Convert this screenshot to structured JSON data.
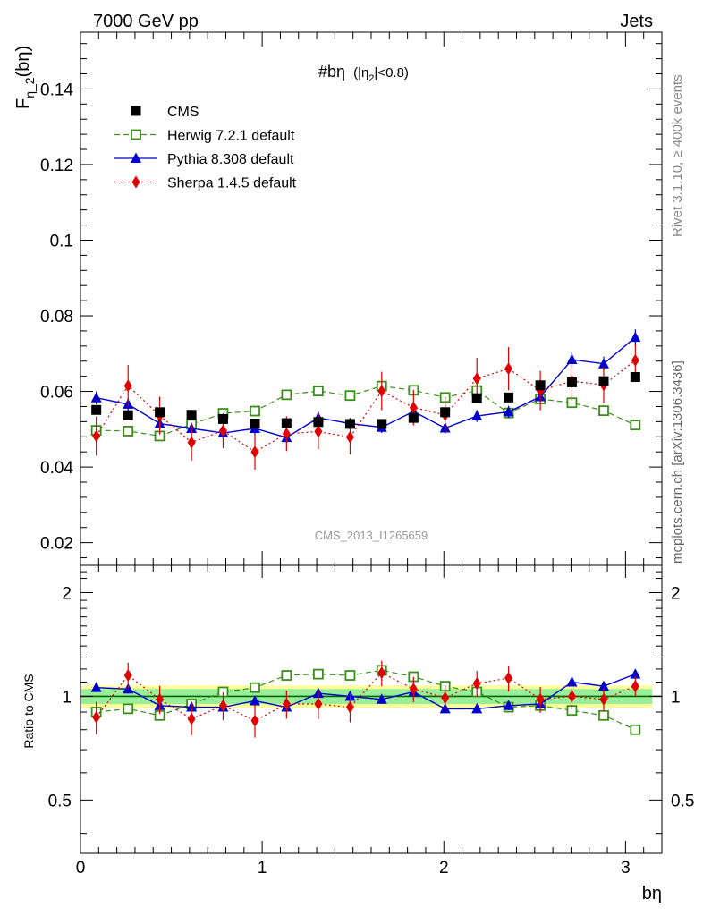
{
  "header": {
    "left": "7000 GeV pp",
    "right": "Jets"
  },
  "side_labels": {
    "rivet": "Rivet 3.1.10, ≥ 400k events",
    "mcplots": "mcplots.cern.ch [arXiv:1306.3436]"
  },
  "plot_title": {
    "main": "#bη",
    "cut": "(|η",
    "cut_sub": "2",
    "cut_end": "|<0.8)"
  },
  "analysis_id": "CMS_2013_I1265659",
  "colors": {
    "cms": "#000000",
    "herwig": "#3a8f1a",
    "pythia": "#0000cc",
    "sherpa": "#e00000",
    "band_yellow": "#ffff99",
    "band_green": "#99ee99",
    "ratio_line": "#006600"
  },
  "chart_data": [
    {
      "type": "scatter",
      "panel": "main",
      "ylabel": "F",
      "ylabel_sub": "η_2",
      "ylabel_arg": "(bη)",
      "xlim": [
        0,
        3.2
      ],
      "ylim": [
        0.014,
        0.155
      ],
      "yticks": [
        0.02,
        0.04,
        0.06,
        0.08,
        0.1,
        0.12,
        0.14
      ],
      "ytick_labels": [
        "0.02",
        "0.04",
        "0.06",
        "0.08",
        "0.1",
        "0.12",
        "0.14"
      ],
      "x": [
        0.087,
        0.262,
        0.436,
        0.611,
        0.785,
        0.96,
        1.134,
        1.309,
        1.484,
        1.658,
        1.833,
        2.007,
        2.182,
        2.356,
        2.531,
        2.705,
        2.88,
        3.054
      ],
      "legend_position": "top-left",
      "series": [
        {
          "name": "CMS",
          "key": "cms",
          "marker": "square",
          "values": [
            0.0551,
            0.0537,
            0.0545,
            0.0538,
            0.0527,
            0.0515,
            0.0516,
            0.0519,
            0.0514,
            0.0514,
            0.053,
            0.0545,
            0.0582,
            0.0584,
            0.0616,
            0.0624,
            0.0627,
            0.0638
          ]
        },
        {
          "name": "Herwig 7.2.1 default",
          "key": "herwig",
          "marker": "open-square",
          "line": "dashed",
          "values": [
            0.0497,
            0.0495,
            0.0482,
            0.0513,
            0.0542,
            0.0548,
            0.0591,
            0.0601,
            0.0589,
            0.0614,
            0.0603,
            0.0584,
            0.0602,
            0.0543,
            0.058,
            0.057,
            0.0549,
            0.0511
          ],
          "errors": [
            0.0012,
            0.0012,
            0.0012,
            0.0012,
            0.0012,
            0.0013,
            0.0013,
            0.0013,
            0.0013,
            0.0014,
            0.0013,
            0.0013,
            0.0013,
            0.0012,
            0.0013,
            0.0013,
            0.0012,
            0.0012
          ]
        },
        {
          "name": "Pythia 8.308 default",
          "key": "pythia",
          "marker": "triangle",
          "line": "solid",
          "values": [
            0.0583,
            0.0566,
            0.0515,
            0.0502,
            0.049,
            0.0502,
            0.0478,
            0.053,
            0.0515,
            0.0505,
            0.0547,
            0.0503,
            0.0535,
            0.0546,
            0.0586,
            0.0684,
            0.0673,
            0.0743
          ],
          "errors": [
            0.0017,
            0.0017,
            0.0016,
            0.0015,
            0.0015,
            0.0016,
            0.0015,
            0.0016,
            0.0015,
            0.0015,
            0.0016,
            0.0015,
            0.0016,
            0.0016,
            0.0017,
            0.0019,
            0.0019,
            0.0021
          ]
        },
        {
          "name": "Sherpa 1.4.5 default",
          "key": "sherpa",
          "marker": "diamond",
          "line": "dotted",
          "values": [
            0.0482,
            0.0615,
            0.0536,
            0.0465,
            0.0496,
            0.044,
            0.0488,
            0.0494,
            0.0479,
            0.0601,
            0.0557,
            0.0538,
            0.0634,
            0.066,
            0.0602,
            0.0627,
            0.0617,
            0.0682
          ],
          "errors": [
            0.0052,
            0.0055,
            0.005,
            0.0048,
            0.0046,
            0.0047,
            0.0046,
            0.0047,
            0.0046,
            0.0051,
            0.0047,
            0.0048,
            0.0055,
            0.0057,
            0.0052,
            0.0052,
            0.0048,
            0.0045
          ]
        }
      ]
    },
    {
      "type": "scatter",
      "panel": "ratio",
      "ylabel": "Ratio to CMS",
      "xlabel": "bη",
      "xlim": [
        0,
        3.2
      ],
      "ylim": [
        0.35,
        2.4
      ],
      "log_y": true,
      "xticks": [
        0,
        1,
        2,
        3
      ],
      "xtick_labels": [
        "0",
        "1",
        "2",
        "3"
      ],
      "yticks": [
        0.5,
        1,
        2
      ],
      "ytick_labels": [
        "0.5",
        "1",
        "2"
      ],
      "band": {
        "inner": 0.05,
        "outer": 0.075
      },
      "series": [
        {
          "key": "herwig",
          "values": [
            0.9,
            0.92,
            0.88,
            0.95,
            1.03,
            1.06,
            1.15,
            1.16,
            1.15,
            1.19,
            1.14,
            1.07,
            1.03,
            0.93,
            0.94,
            0.91,
            0.88,
            0.8
          ]
        },
        {
          "key": "pythia",
          "values": [
            1.06,
            1.05,
            0.94,
            0.93,
            0.93,
            0.97,
            0.93,
            1.02,
            1.0,
            0.98,
            1.03,
            0.92,
            0.92,
            0.94,
            0.95,
            1.1,
            1.07,
            1.16
          ]
        },
        {
          "key": "sherpa",
          "values": [
            0.87,
            1.15,
            0.98,
            0.86,
            0.94,
            0.85,
            0.95,
            0.95,
            0.93,
            1.17,
            1.05,
            0.99,
            1.09,
            1.13,
            0.98,
            1.0,
            0.98,
            1.07
          ]
        }
      ]
    }
  ]
}
